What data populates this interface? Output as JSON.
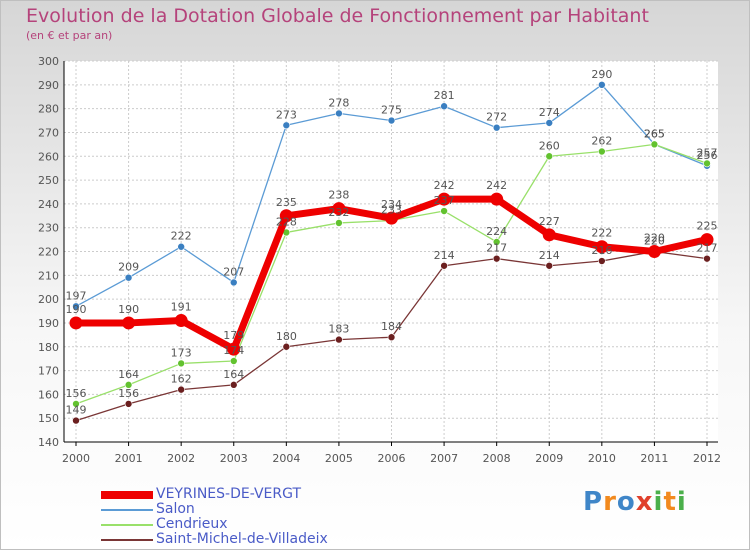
{
  "title": "Evolution de la Dotation Globale de Fonctionnement par Habitant",
  "subtitle": "(en € et par an)",
  "logo": "Proxiti",
  "colors": {
    "title": "#b5437b",
    "grid": "#cccccc",
    "axis": "#000000",
    "legend_text": "#4a5bc7"
  },
  "chart_data": {
    "type": "line",
    "title": "Evolution de la Dotation Globale de Fonctionnement par Habitant",
    "ylabel": "(en € et par an)",
    "xlabel": "",
    "x": [
      "2000",
      "2001",
      "2002",
      "2003",
      "2004",
      "2005",
      "2006",
      "2007",
      "2008",
      "2009",
      "2010",
      "2011",
      "2012"
    ],
    "ylim": [
      140,
      300
    ],
    "ytick_step": 10,
    "grid": true,
    "legend_position": "bottom-left",
    "series": [
      {
        "name": "Salon",
        "color": "#5b9bd5",
        "marker": "#3a7fc1",
        "width": 1.3,
        "radius": 3.5,
        "values": [
          197,
          209,
          222,
          207,
          273,
          278,
          275,
          281,
          272,
          274,
          290,
          265,
          256
        ]
      },
      {
        "name": "Cendrieux",
        "color": "#99e06a",
        "marker": "#62c22f",
        "width": 1.3,
        "radius": 3.5,
        "values": [
          156,
          164,
          173,
          174,
          228,
          232,
          233,
          237,
          224,
          260,
          262,
          265,
          257
        ]
      },
      {
        "name": "Saint-Michel-de-Villadeix",
        "color": "#7a3636",
        "marker": "#6b1f1f",
        "width": 1.3,
        "radius": 3.5,
        "values": [
          149,
          156,
          162,
          164,
          180,
          183,
          184,
          214,
          217,
          214,
          216,
          220,
          217
        ]
      },
      {
        "name": "VEYRINES-DE-VERGT",
        "color": "#ee0000",
        "marker": "#ee0000",
        "width": 7,
        "radius": 6.5,
        "values": [
          190,
          190,
          191,
          179,
          235,
          238,
          234,
          242,
          242,
          227,
          222,
          220,
          225
        ]
      }
    ],
    "legend_order": [
      "VEYRINES-DE-VERGT",
      "Salon",
      "Cendrieux",
      "Saint-Michel-de-Villadeix"
    ]
  }
}
